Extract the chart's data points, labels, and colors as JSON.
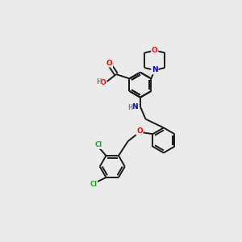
{
  "bg_color": "#ebebeb",
  "bond_color": "#1a1a1a",
  "atom_colors": {
    "O": "#ff0000",
    "N": "#0000cc",
    "Cl": "#22aa22",
    "H": "#808080"
  },
  "lw": 1.4
}
